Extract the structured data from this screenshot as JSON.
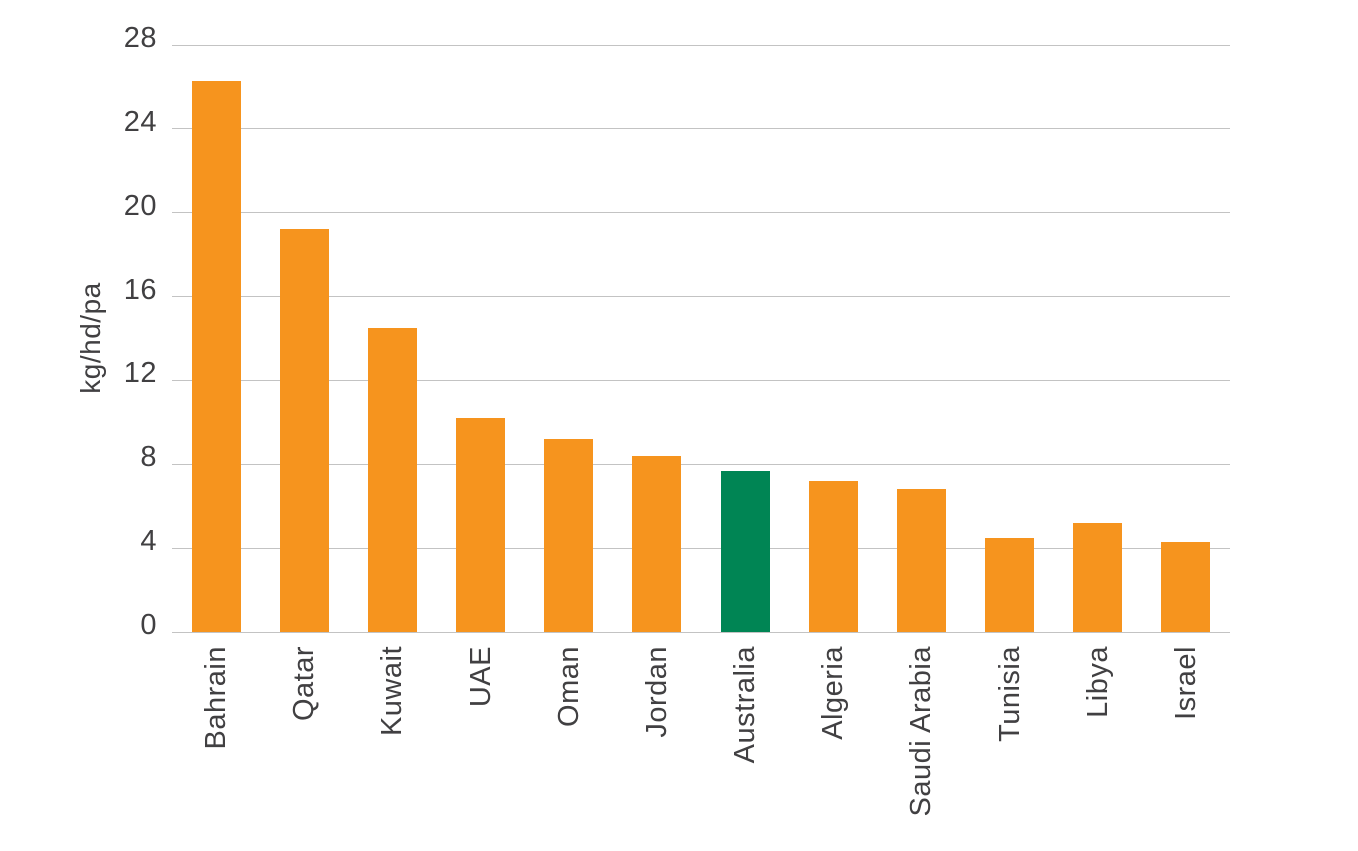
{
  "chart_data": {
    "type": "bar",
    "title": "",
    "xlabel": "",
    "ylabel": "kg/hd/pa",
    "categories": [
      "Bahrain",
      "Qatar",
      "Kuwait",
      "UAE",
      "Oman",
      "Jordan",
      "Australia",
      "Algeria",
      "Saudi Arabia",
      "Tunisia",
      "Libya",
      "Israel"
    ],
    "values": [
      26.3,
      19.2,
      14.5,
      10.2,
      9.2,
      8.4,
      7.7,
      7.2,
      6.8,
      4.5,
      5.2,
      4.3
    ],
    "highlight_category": "Australia",
    "ylim": [
      0,
      28
    ],
    "yticks": [
      0,
      4,
      8,
      12,
      16,
      20,
      24,
      28
    ],
    "grid": true,
    "legend": false,
    "colors": {
      "bar": "#F6941E",
      "highlight": "#008554",
      "gridline": "#C3C3C3",
      "axis_text": "#414042"
    }
  }
}
